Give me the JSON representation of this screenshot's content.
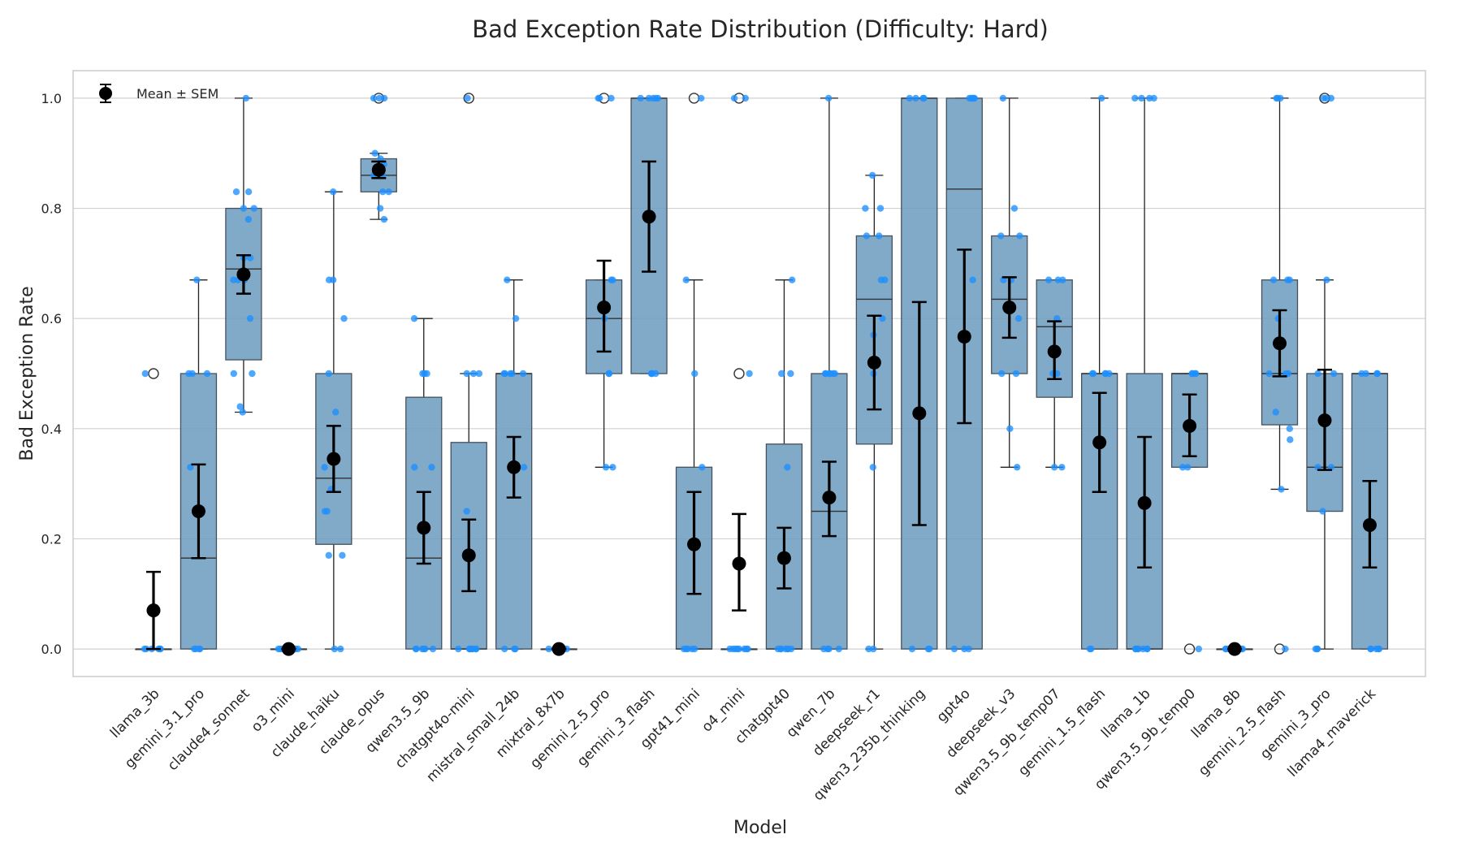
{
  "chart_data": {
    "type": "box",
    "title": "Bad Exception Rate Distribution (Difficulty: Hard)",
    "xlabel": "Model",
    "ylabel": "Bad Exception Rate",
    "ylim": [
      -0.05,
      1.05
    ],
    "yticks": [
      "0.0",
      "0.2",
      "0.4",
      "0.6",
      "0.8",
      "1.0"
    ],
    "grid": "horizontal",
    "legend": {
      "position": "top-left",
      "label": "Mean ± SEM"
    },
    "colors": {
      "box": "#6b9bbf",
      "points": "#1e90ff",
      "mean": "#000000",
      "grid": "#d0d0d0"
    },
    "models": [
      {
        "name": "llama_3b",
        "q1": 0.0,
        "median": 0.0,
        "q3": 0.0,
        "whisker_low": 0.0,
        "whisker_high": 0.0,
        "mean": 0.07,
        "sem_low": 0.0,
        "sem_high": 0.14,
        "outliers": [
          0.5
        ],
        "points": [
          0.0,
          0.0,
          0.0,
          0.0,
          0.0,
          0.0,
          0.5
        ]
      },
      {
        "name": "gemini_3.1_pro",
        "q1": 0.0,
        "median": 0.165,
        "q3": 0.5,
        "whisker_low": 0.0,
        "whisker_high": 0.67,
        "mean": 0.25,
        "sem_low": 0.165,
        "sem_high": 0.335,
        "outliers": [],
        "points": [
          0.0,
          0.0,
          0.0,
          0.0,
          0.33,
          0.5,
          0.5,
          0.5,
          0.67
        ]
      },
      {
        "name": "claude4_sonnet",
        "q1": 0.525,
        "median": 0.69,
        "q3": 0.8,
        "whisker_low": 0.43,
        "whisker_high": 1.0,
        "mean": 0.68,
        "sem_low": 0.645,
        "sem_high": 0.715,
        "outliers": [],
        "points": [
          0.43,
          0.44,
          0.5,
          0.5,
          0.6,
          0.67,
          0.67,
          0.67,
          0.71,
          0.71,
          0.78,
          0.8,
          0.8,
          0.83,
          0.83,
          1.0
        ]
      },
      {
        "name": "o3_mini",
        "q1": 0.0,
        "median": 0.0,
        "q3": 0.0,
        "whisker_low": 0.0,
        "whisker_high": 0.0,
        "mean": 0.0,
        "sem_low": 0.0,
        "sem_high": 0.0,
        "outliers": [],
        "points": [
          0.0,
          0.0,
          0.0,
          0.0,
          0.0,
          0.0,
          0.0,
          0.0
        ]
      },
      {
        "name": "claude_haiku",
        "q1": 0.19,
        "median": 0.31,
        "q3": 0.5,
        "whisker_low": 0.0,
        "whisker_high": 0.83,
        "mean": 0.345,
        "sem_low": 0.285,
        "sem_high": 0.405,
        "outliers": [],
        "points": [
          0.0,
          0.0,
          0.17,
          0.17,
          0.25,
          0.25,
          0.29,
          0.33,
          0.43,
          0.5,
          0.6,
          0.67,
          0.67,
          0.83
        ]
      },
      {
        "name": "claude_opus",
        "q1": 0.83,
        "median": 0.86,
        "q3": 0.89,
        "whisker_low": 0.78,
        "whisker_high": 0.9,
        "mean": 0.87,
        "sem_low": 0.855,
        "sem_high": 0.885,
        "outliers": [
          1.0
        ],
        "points": [
          0.78,
          0.8,
          0.83,
          0.83,
          0.86,
          0.86,
          0.88,
          0.89,
          0.9,
          1.0,
          1.0,
          1.0
        ]
      },
      {
        "name": "qwen3.5_9b",
        "q1": 0.0,
        "median": 0.165,
        "q3": 0.457,
        "whisker_low": 0.0,
        "whisker_high": 0.6,
        "mean": 0.22,
        "sem_low": 0.155,
        "sem_high": 0.285,
        "outliers": [],
        "points": [
          0.0,
          0.0,
          0.0,
          0.0,
          0.0,
          0.0,
          0.33,
          0.33,
          0.5,
          0.5,
          0.5,
          0.6
        ]
      },
      {
        "name": "chatgpt4o-mini",
        "q1": 0.0,
        "median": 0.0,
        "q3": 0.375,
        "whisker_low": 0.0,
        "whisker_high": 0.5,
        "mean": 0.17,
        "sem_low": 0.105,
        "sem_high": 0.235,
        "outliers": [
          1.0
        ],
        "points": [
          0.0,
          0.0,
          0.0,
          0.0,
          0.0,
          0.0,
          0.0,
          0.0,
          0.25,
          0.5,
          0.5,
          0.5,
          1.0
        ]
      },
      {
        "name": "mistral_small_24b",
        "q1": 0.0,
        "median": 0.5,
        "q3": 0.5,
        "whisker_low": 0.0,
        "whisker_high": 0.67,
        "mean": 0.33,
        "sem_low": 0.275,
        "sem_high": 0.385,
        "outliers": [],
        "points": [
          0.0,
          0.0,
          0.0,
          0.33,
          0.33,
          0.5,
          0.5,
          0.5,
          0.5,
          0.5,
          0.6,
          0.67
        ]
      },
      {
        "name": "mixtral_8x7b",
        "q1": 0.0,
        "median": 0.0,
        "q3": 0.0,
        "whisker_low": 0.0,
        "whisker_high": 0.0,
        "mean": 0.0,
        "sem_low": 0.0,
        "sem_high": 0.0,
        "outliers": [],
        "points": [
          0.0,
          0.0,
          0.0,
          0.0,
          0.0,
          0.0
        ]
      },
      {
        "name": "gemini_2.5_pro",
        "q1": 0.5,
        "median": 0.6,
        "q3": 0.67,
        "whisker_low": 0.33,
        "whisker_high": 0.67,
        "mean": 0.62,
        "sem_low": 0.54,
        "sem_high": 0.705,
        "outliers": [
          1.0
        ],
        "points": [
          0.33,
          0.33,
          0.5,
          0.5,
          0.6,
          0.67,
          0.67,
          1.0,
          1.0,
          1.0
        ]
      },
      {
        "name": "gemini_3_flash",
        "q1": 0.5,
        "median": 1.0,
        "q3": 1.0,
        "whisker_low": 0.5,
        "whisker_high": 1.0,
        "mean": 0.785,
        "sem_low": 0.685,
        "sem_high": 0.885,
        "outliers": [],
        "points": [
          0.5,
          0.5,
          0.5,
          0.5,
          1.0,
          1.0,
          1.0,
          1.0,
          1.0
        ]
      },
      {
        "name": "gpt41_mini",
        "q1": 0.0,
        "median": 0.0,
        "q3": 0.33,
        "whisker_low": 0.0,
        "whisker_high": 0.67,
        "mean": 0.19,
        "sem_low": 0.1,
        "sem_high": 0.285,
        "outliers": [
          1.0
        ],
        "points": [
          0.0,
          0.0,
          0.0,
          0.0,
          0.0,
          0.33,
          0.5,
          0.67,
          1.0
        ]
      },
      {
        "name": "o4_mini",
        "q1": 0.0,
        "median": 0.0,
        "q3": 0.0,
        "whisker_low": 0.0,
        "whisker_high": 0.0,
        "mean": 0.155,
        "sem_low": 0.07,
        "sem_high": 0.245,
        "outliers": [
          0.5,
          1.0
        ],
        "points": [
          0.0,
          0.0,
          0.0,
          0.0,
          0.0,
          0.0,
          0.0,
          0.0,
          0.5,
          1.0,
          1.0
        ]
      },
      {
        "name": "chatgpt40",
        "q1": 0.0,
        "median": 0.0,
        "q3": 0.372,
        "whisker_low": 0.0,
        "whisker_high": 0.67,
        "mean": 0.165,
        "sem_low": 0.11,
        "sem_high": 0.22,
        "outliers": [],
        "points": [
          0.0,
          0.0,
          0.0,
          0.0,
          0.0,
          0.0,
          0.0,
          0.33,
          0.5,
          0.5,
          0.67
        ]
      },
      {
        "name": "qwen_7b",
        "q1": 0.0,
        "median": 0.25,
        "q3": 0.5,
        "whisker_low": 0.0,
        "whisker_high": 1.0,
        "mean": 0.275,
        "sem_low": 0.205,
        "sem_high": 0.34,
        "outliers": [],
        "points": [
          0.0,
          0.0,
          0.0,
          0.0,
          0.5,
          0.5,
          0.5,
          0.5,
          0.5,
          0.5,
          1.0
        ]
      },
      {
        "name": "deepseek_r1",
        "q1": 0.372,
        "median": 0.635,
        "q3": 0.75,
        "whisker_low": 0.0,
        "whisker_high": 0.86,
        "mean": 0.52,
        "sem_low": 0.435,
        "sem_high": 0.605,
        "outliers": [],
        "points": [
          0.0,
          0.0,
          0.33,
          0.5,
          0.57,
          0.6,
          0.67,
          0.67,
          0.75,
          0.75,
          0.8,
          0.8,
          0.86
        ]
      },
      {
        "name": "qwen3_235b_thinking",
        "q1": 0.0,
        "median": 1.0,
        "q3": 1.0,
        "whisker_low": 0.0,
        "whisker_high": 1.0,
        "mean": 0.428,
        "sem_low": 0.225,
        "sem_high": 0.63,
        "outliers": [],
        "points": [
          0.0,
          0.0,
          0.0,
          1.0,
          1.0,
          1.0,
          1.0
        ]
      },
      {
        "name": "gpt4o",
        "q1": 0.0,
        "median": 0.835,
        "q3": 1.0,
        "whisker_low": 0.0,
        "whisker_high": 1.0,
        "mean": 0.567,
        "sem_low": 0.41,
        "sem_high": 0.725,
        "outliers": [],
        "points": [
          0.0,
          0.0,
          0.0,
          0.67,
          1.0,
          1.0,
          1.0,
          1.0,
          1.0
        ]
      },
      {
        "name": "deepseek_v3",
        "q1": 0.5,
        "median": 0.635,
        "q3": 0.75,
        "whisker_low": 0.33,
        "whisker_high": 1.0,
        "mean": 0.62,
        "sem_low": 0.565,
        "sem_high": 0.675,
        "outliers": [],
        "points": [
          0.33,
          0.4,
          0.5,
          0.5,
          0.6,
          0.67,
          0.67,
          0.75,
          0.75,
          0.8,
          1.0
        ]
      },
      {
        "name": "qwen3.5_9b_temp07",
        "q1": 0.457,
        "median": 0.585,
        "q3": 0.67,
        "whisker_low": 0.33,
        "whisker_high": 0.67,
        "mean": 0.54,
        "sem_low": 0.49,
        "sem_high": 0.595,
        "outliers": [],
        "points": [
          0.33,
          0.33,
          0.5,
          0.5,
          0.6,
          0.67,
          0.67,
          0.67
        ]
      },
      {
        "name": "gemini_1.5_flash",
        "q1": 0.0,
        "median": 0.5,
        "q3": 0.5,
        "whisker_low": 0.0,
        "whisker_high": 1.0,
        "mean": 0.375,
        "sem_low": 0.285,
        "sem_high": 0.465,
        "outliers": [],
        "points": [
          0.0,
          0.0,
          0.5,
          0.5,
          0.5,
          0.5,
          0.5,
          1.0
        ]
      },
      {
        "name": "llama_1b",
        "q1": 0.0,
        "median": 0.0,
        "q3": 0.5,
        "whisker_low": 0.0,
        "whisker_high": 1.0,
        "mean": 0.265,
        "sem_low": 0.148,
        "sem_high": 0.385,
        "outliers": [],
        "points": [
          0.0,
          0.0,
          0.0,
          0.0,
          0.0,
          0.0,
          0.0,
          1.0,
          1.0,
          1.0,
          1.0
        ]
      },
      {
        "name": "qwen3.5_9b_temp0",
        "q1": 0.33,
        "median": 0.5,
        "q3": 0.5,
        "whisker_low": 0.33,
        "whisker_high": 0.5,
        "mean": 0.405,
        "sem_low": 0.35,
        "sem_high": 0.462,
        "outliers": [
          0.0
        ],
        "points": [
          0.0,
          0.33,
          0.33,
          0.5,
          0.5,
          0.5,
          0.5
        ]
      },
      {
        "name": "llama_8b",
        "q1": 0.0,
        "median": 0.0,
        "q3": 0.0,
        "whisker_low": 0.0,
        "whisker_high": 0.0,
        "mean": 0.0,
        "sem_low": 0.0,
        "sem_high": 0.0,
        "outliers": [],
        "points": [
          0.0,
          0.0,
          0.0,
          0.0,
          0.0,
          0.0,
          0.0
        ]
      },
      {
        "name": "gemini_2.5_flash",
        "q1": 0.407,
        "median": 0.5,
        "q3": 0.67,
        "whisker_low": 0.29,
        "whisker_high": 1.0,
        "mean": 0.555,
        "sem_low": 0.495,
        "sem_high": 0.615,
        "outliers": [
          0.0
        ],
        "points": [
          0.0,
          0.29,
          0.38,
          0.4,
          0.43,
          0.5,
          0.5,
          0.5,
          0.6,
          0.67,
          0.67,
          0.67,
          1.0,
          1.0,
          1.0
        ]
      },
      {
        "name": "gemini_3_pro",
        "q1": 0.25,
        "median": 0.33,
        "q3": 0.5,
        "whisker_low": 0.0,
        "whisker_high": 0.67,
        "mean": 0.415,
        "sem_low": 0.325,
        "sem_high": 0.507,
        "outliers": [
          1.0
        ],
        "points": [
          0.0,
          0.0,
          0.0,
          0.25,
          0.33,
          0.33,
          0.5,
          0.5,
          0.67,
          1.0,
          1.0,
          1.0
        ]
      },
      {
        "name": "llama4_maverick",
        "q1": 0.0,
        "median": 0.5,
        "q3": 0.5,
        "whisker_low": 0.0,
        "whisker_high": 0.5,
        "mean": 0.225,
        "sem_low": 0.148,
        "sem_high": 0.305,
        "outliers": [],
        "points": [
          0.0,
          0.0,
          0.0,
          0.0,
          0.0,
          0.5,
          0.5,
          0.5,
          0.5
        ]
      }
    ]
  }
}
